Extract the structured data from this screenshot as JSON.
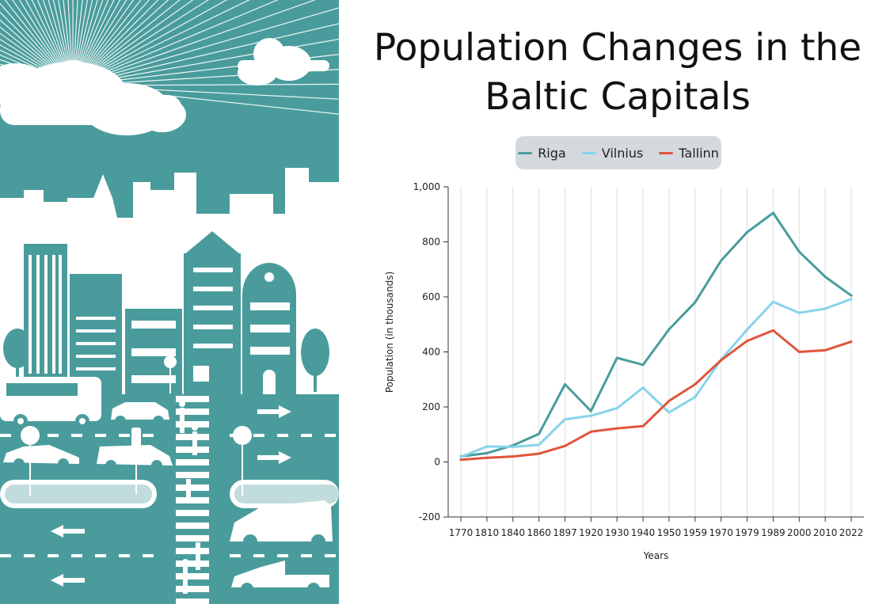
{
  "title": "Population Changes in the Baltic Capitals",
  "colors": {
    "teal_illustration": "#4a9c9c",
    "riga": "#4a9c9c",
    "vilnius": "#86d3ec",
    "tallinn": "#e0553a",
    "legend_bg": "#d4d9de"
  },
  "chart_data": {
    "type": "line",
    "title": "Population Changes in the Baltic Capitals",
    "xlabel": "Years",
    "ylabel": "Population (in thousands)",
    "x": [
      "1770",
      "1810",
      "1840",
      "1860",
      "1897",
      "1920",
      "1930",
      "1940",
      "1950",
      "1959",
      "1970",
      "1979",
      "1989",
      "2000",
      "2010",
      "2022"
    ],
    "ylim": [
      -200,
      1000
    ],
    "yticks": [
      -200,
      0,
      200,
      400,
      600,
      800,
      1000
    ],
    "ytick_labels": [
      "-200",
      "0",
      "200",
      "400",
      "600",
      "800",
      "1,000"
    ],
    "legend_position": "top",
    "grid": "vertical",
    "series": [
      {
        "name": "Riga",
        "color": "#4a9c9c",
        "values": [
          20,
          32,
          60,
          102,
          282,
          185,
          378,
          353,
          482,
          580,
          732,
          835,
          905,
          764,
          673,
          605
        ]
      },
      {
        "name": "Vilnius",
        "color": "#86d3ec",
        "values": [
          18,
          56,
          55,
          62,
          155,
          168,
          195,
          270,
          180,
          236,
          372,
          481,
          582,
          542,
          557,
          592
        ]
      },
      {
        "name": "Tallinn",
        "color": "#e0553a",
        "values": [
          8,
          15,
          20,
          30,
          58,
          110,
          122,
          130,
          222,
          282,
          370,
          440,
          478,
          400,
          406,
          437
        ]
      }
    ]
  }
}
